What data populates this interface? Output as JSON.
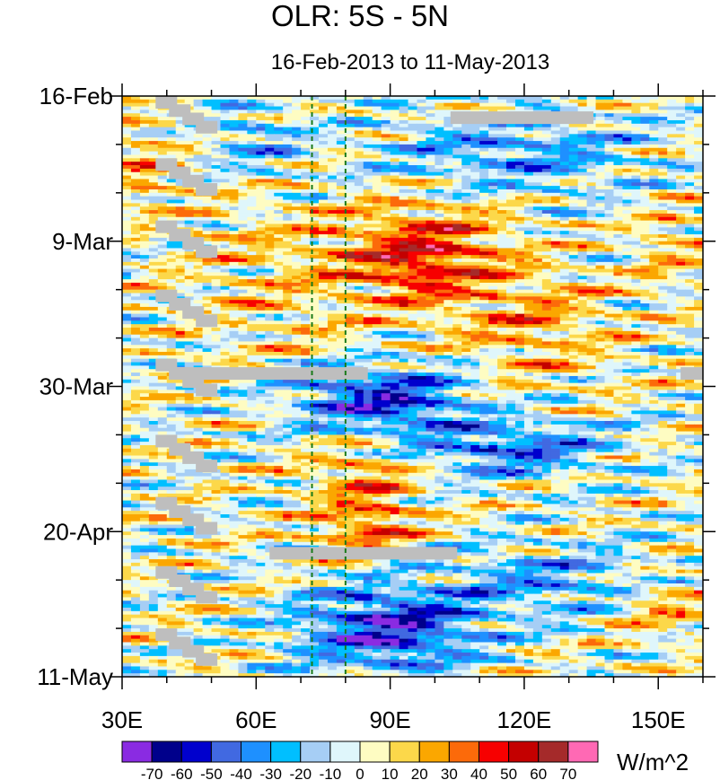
{
  "chart_data": {
    "type": "heatmap",
    "title": "OLR: 5S - 5N",
    "subtitle": "16-Feb-2013 to 11-May-2013",
    "x_range": [
      30,
      160
    ],
    "x_ticks": [
      {
        "value": 30,
        "label": "30E"
      },
      {
        "value": 60,
        "label": "60E"
      },
      {
        "value": 90,
        "label": "90E"
      },
      {
        "value": 120,
        "label": "120E"
      },
      {
        "value": 150,
        "label": "150E"
      }
    ],
    "x_minor_step": 10,
    "y_range_days": [
      0,
      84
    ],
    "y_ticks": [
      {
        "day": 0,
        "label": "16-Feb"
      },
      {
        "day": 21,
        "label": "9-Mar"
      },
      {
        "day": 42,
        "label": "30-Mar"
      },
      {
        "day": 63,
        "label": "20-Apr"
      },
      {
        "day": 84,
        "label": "11-May"
      }
    ],
    "y_minor_step_days": 7,
    "reference_lines_lon": [
      72.5,
      80
    ],
    "colorbar": {
      "unit": "W/m^2",
      "levels": [
        -70,
        -60,
        -50,
        -40,
        -30,
        -20,
        -10,
        0,
        10,
        20,
        30,
        40,
        50,
        60,
        70
      ],
      "colors": [
        "#8a2be2",
        "#00008b",
        "#0000cd",
        "#4169e1",
        "#1e90ff",
        "#00bfff",
        "#a6cef5",
        "#dff6fb",
        "#fefcc2",
        "#fcd84a",
        "#fba700",
        "#fc6a0a",
        "#f70000",
        "#c40000",
        "#a52a2a",
        "#ff69b4"
      ]
    },
    "features": [
      {
        "type": "positive",
        "lon": 97,
        "day": 23,
        "rlon": 17,
        "rday": 7,
        "value": 48
      },
      {
        "type": "positive",
        "lon": 122,
        "day": 33,
        "rlon": 16,
        "rday": 8,
        "value": 22
      },
      {
        "type": "positive",
        "lon": 65,
        "day": 26,
        "rlon": 22,
        "rday": 12,
        "value": 12
      },
      {
        "type": "positive",
        "lon": 84,
        "day": 55,
        "rlon": 12,
        "rday": 6,
        "value": 26
      },
      {
        "type": "positive",
        "lon": 85,
        "day": 63,
        "rlon": 10,
        "rday": 4,
        "value": 32
      },
      {
        "type": "positive",
        "lon": 35,
        "day": 11,
        "rlon": 7,
        "rday": 6,
        "value": 20
      },
      {
        "type": "positive",
        "lon": 153,
        "day": 22,
        "rlon": 8,
        "rday": 6,
        "value": 15
      },
      {
        "type": "positive",
        "lon": 150,
        "day": 74,
        "rlon": 10,
        "rday": 4,
        "value": 20
      },
      {
        "type": "negative",
        "lon": 88,
        "day": 44,
        "rlon": 19,
        "rday": 5,
        "value": -55
      },
      {
        "type": "negative",
        "lon": 90,
        "day": 77,
        "rlon": 20,
        "rday": 6,
        "value": -58
      },
      {
        "type": "negative",
        "lon": 118,
        "day": 51,
        "rlon": 22,
        "rday": 4,
        "value": -40
      },
      {
        "type": "negative",
        "lon": 118,
        "day": 8,
        "rlon": 30,
        "rday": 6,
        "value": -28
      },
      {
        "type": "negative",
        "lon": 125,
        "day": 70,
        "rlon": 22,
        "rday": 5,
        "value": -28
      },
      {
        "type": "negative",
        "lon": 60,
        "day": 6,
        "rlon": 12,
        "rday": 5,
        "value": -22
      }
    ],
    "missing_data_segments": [
      {
        "lon0": 103.5,
        "lon1": 135.5,
        "day": 3,
        "note": "90E band"
      },
      {
        "lon0": 40.5,
        "lon1": 85,
        "day": 40,
        "note": "30-Mar"
      },
      {
        "lon0": 63,
        "lon1": 105,
        "day": 66,
        "note": "20-Apr"
      },
      {
        "lon0": 155,
        "lon1": 161,
        "day": 40,
        "note": "east edge"
      }
    ]
  }
}
